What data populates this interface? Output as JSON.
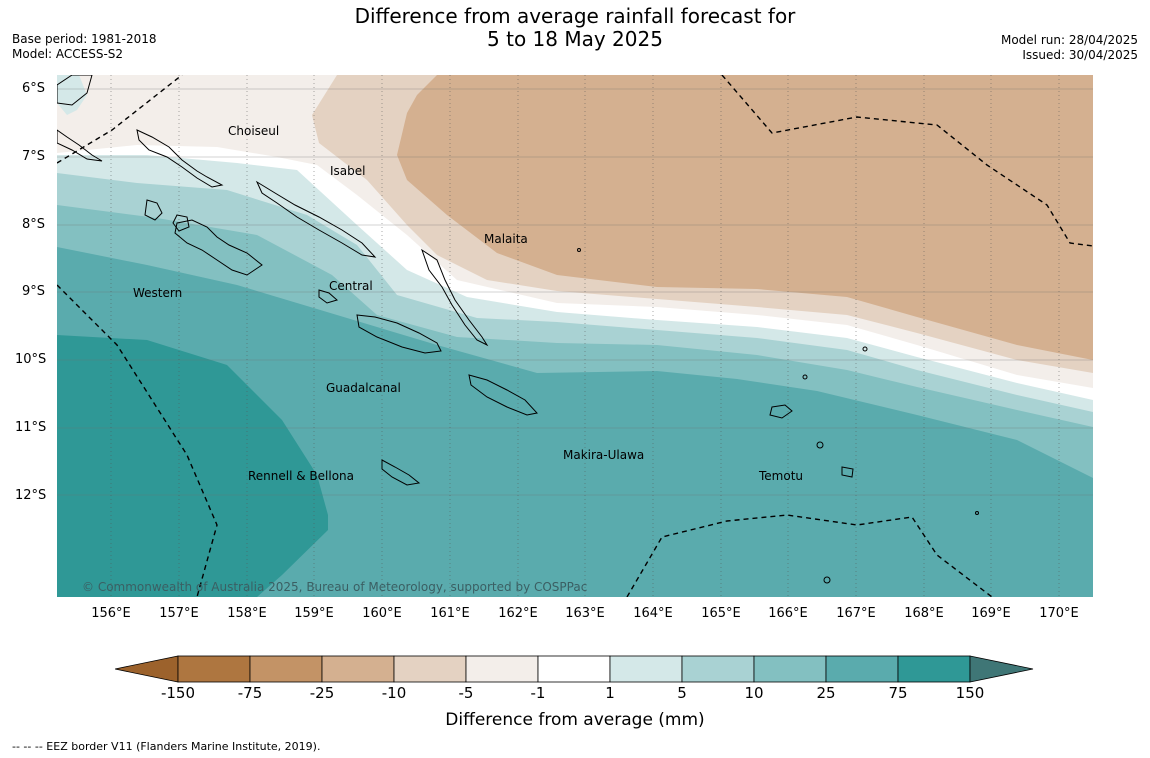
{
  "title": {
    "line1": "Difference from average rainfall forecast for",
    "line2": "5 to 18 May 2025"
  },
  "meta": {
    "base_period": "Base period: 1981-2018",
    "model": "Model: ACCESS-S2",
    "model_run": "Model run: 28/04/2025",
    "issued": "Issued: 30/04/2025"
  },
  "map": {
    "latitude_labels": [
      "6°S",
      "7°S",
      "8°S",
      "9°S",
      "10°S",
      "11°S",
      "12°S"
    ],
    "longitude_labels": [
      "156°E",
      "157°E",
      "158°E",
      "159°E",
      "160°E",
      "161°E",
      "162°E",
      "163°E",
      "164°E",
      "165°E",
      "166°E",
      "167°E",
      "168°E",
      "169°E",
      "170°E"
    ],
    "places": [
      "Choiseul",
      "Isabel",
      "Malaita",
      "Central",
      "Western",
      "Guadalcanal",
      "Makira-Ulawa",
      "Rennell & Bellona",
      "Temotu"
    ],
    "copyright": "© Commonwealth of Australia 2025, Bureau of Meteorology, supported by COSPPac"
  },
  "colorbar": {
    "ticks": [
      "-150",
      "-75",
      "-25",
      "-10",
      "-5",
      "-1",
      "1",
      "5",
      "10",
      "25",
      "75",
      "150"
    ],
    "colors": [
      "#9c622c",
      "#ae7640",
      "#c39366",
      "#d4b090",
      "#e4d2c2",
      "#f3eeea",
      "#ffffff",
      "#d4e8e8",
      "#a9d2d3",
      "#83c0c1",
      "#5aabad",
      "#2f9896",
      "#3f7676"
    ],
    "label": "Difference from average (mm)"
  },
  "footnote": "--  --  -- EEZ border V11 (Flanders Marine Institute, 2019)."
}
